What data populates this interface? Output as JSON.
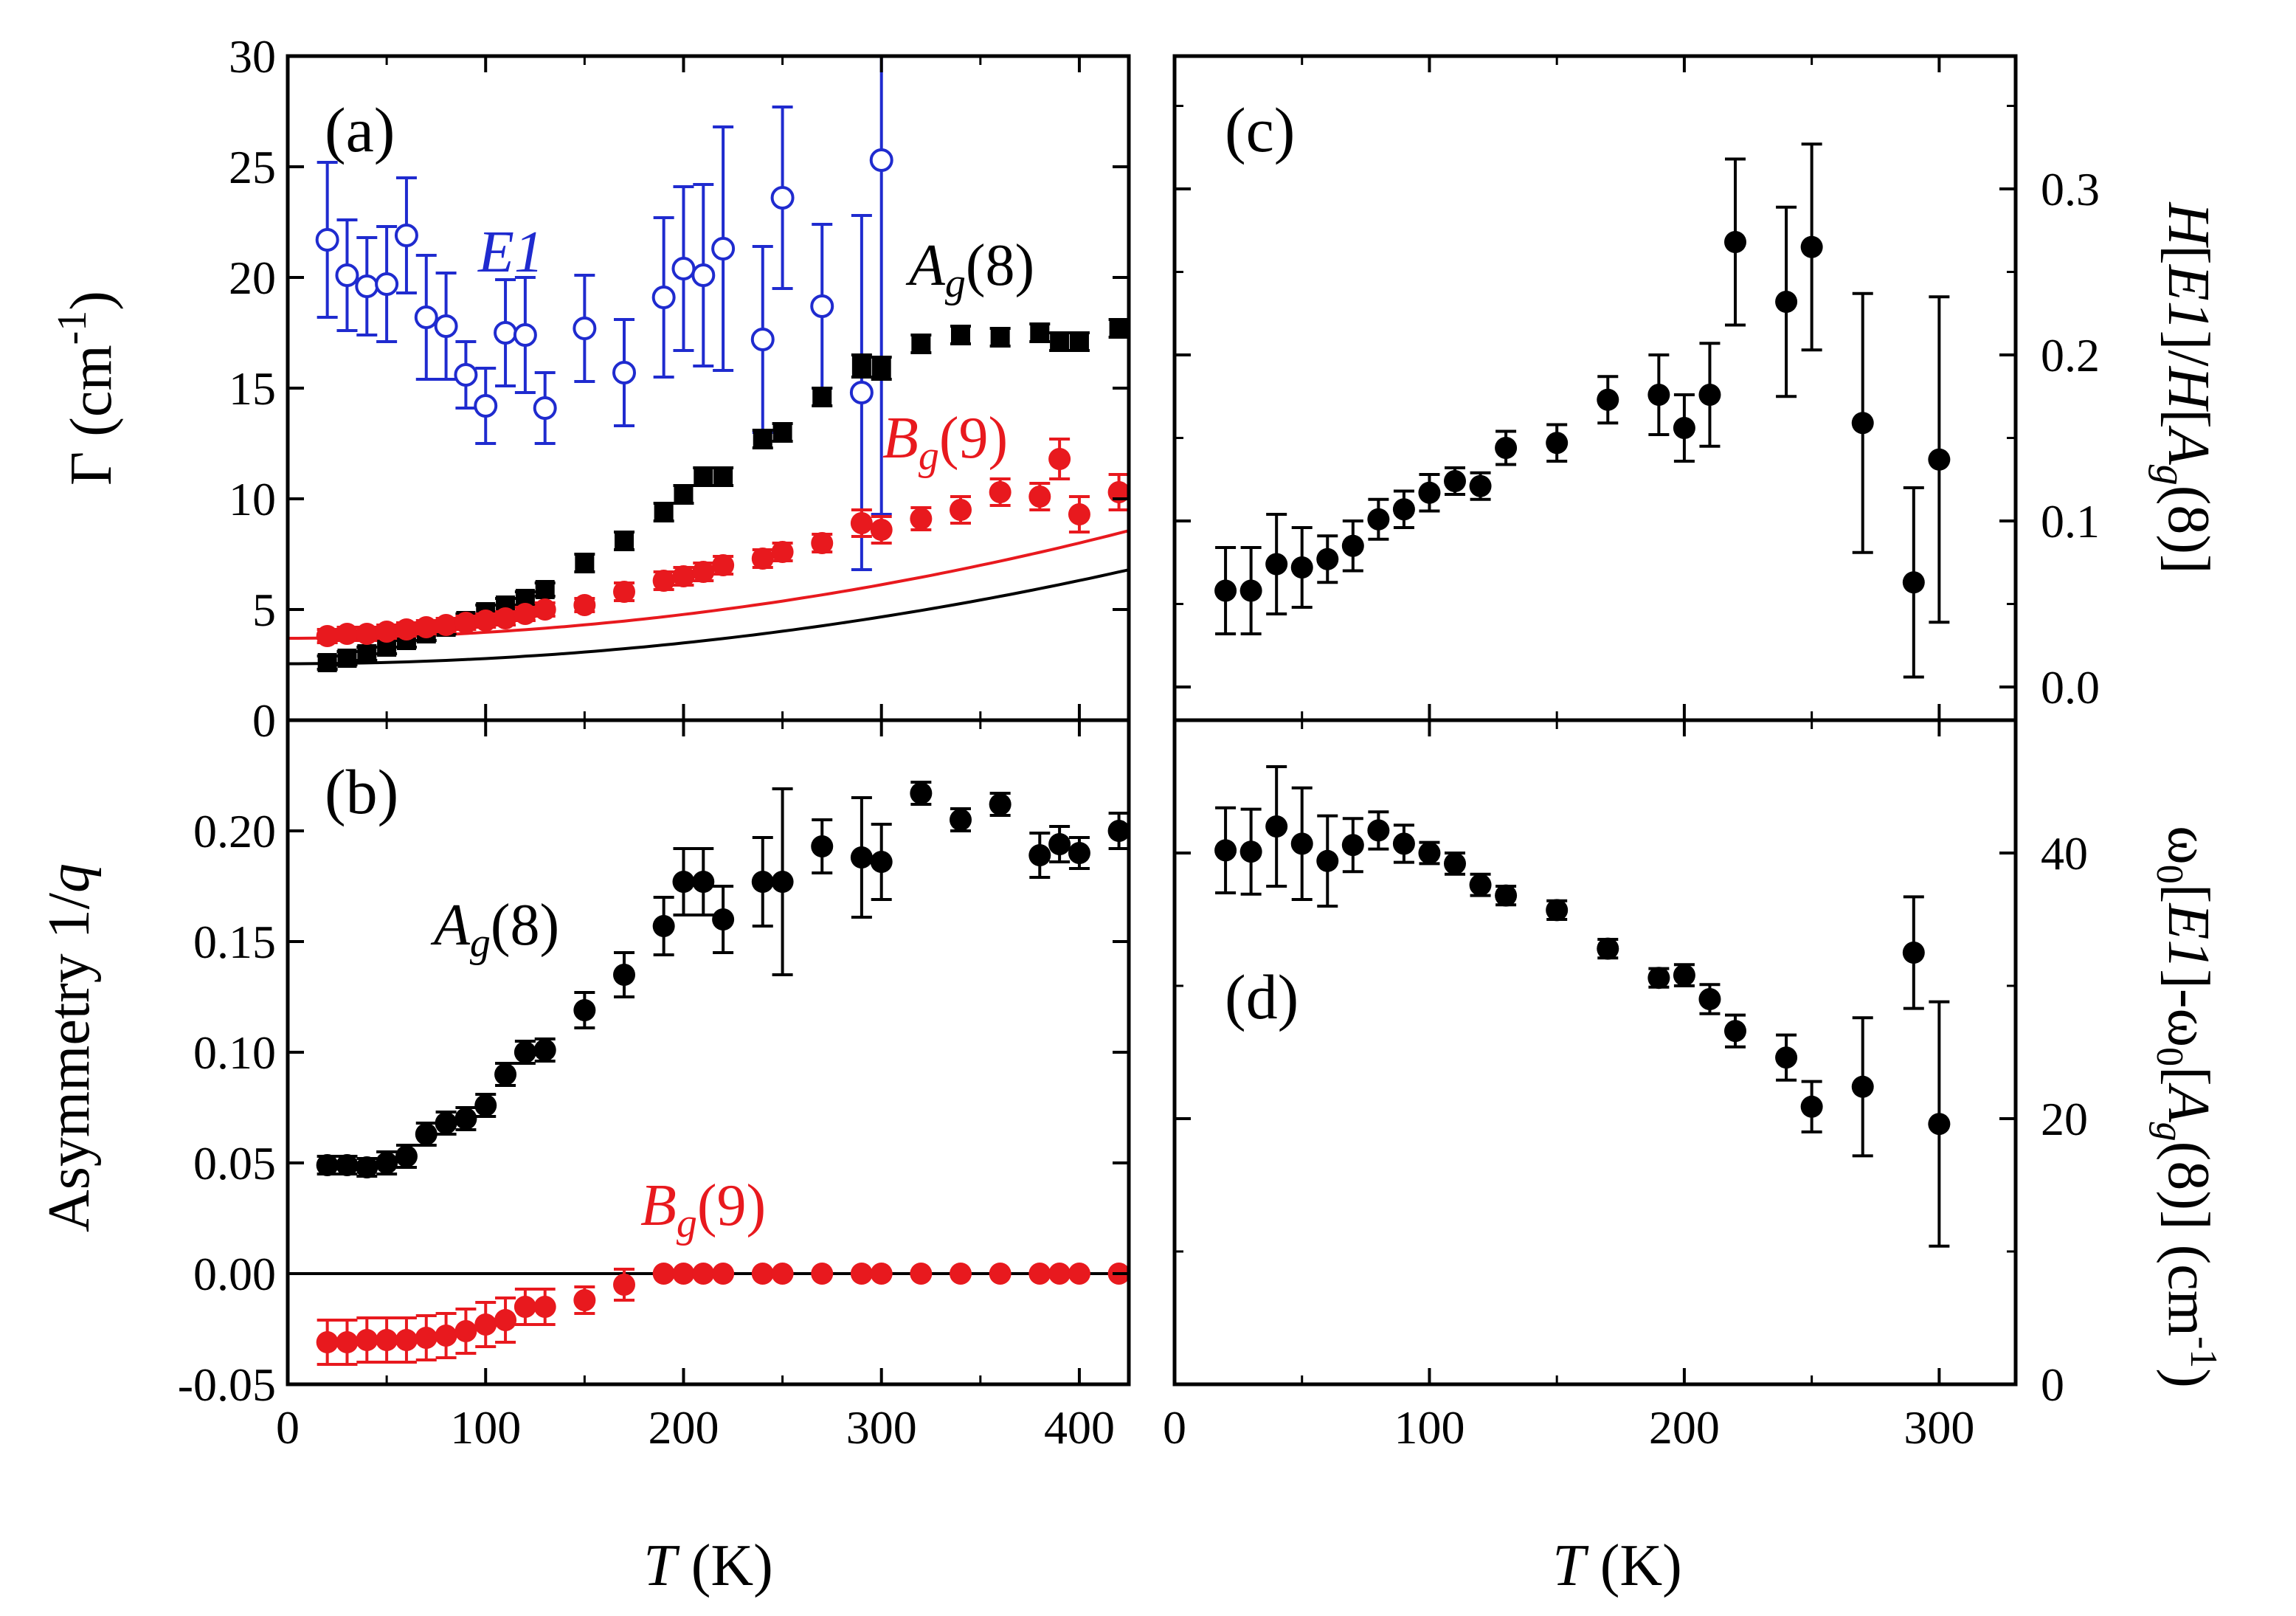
{
  "chart_data": [
    {
      "id": "a",
      "type": "scatter",
      "panel_label": "(a)",
      "ylabel": "Γ (cm",
      "ylabel_sup": "-1",
      "ylabel_close": ")",
      "xlabel": "",
      "xlim": [
        0,
        425
      ],
      "ylim": [
        0,
        30
      ],
      "xticks": [
        0,
        100,
        200,
        300,
        400
      ],
      "yticks": [
        0,
        5,
        10,
        15,
        20,
        25,
        30
      ],
      "series": [
        {
          "name": "E1",
          "color": "#1f2bcf",
          "marker": "open-circle",
          "x": [
            20,
            30,
            40,
            50,
            60,
            70,
            80,
            90,
            100,
            110,
            120,
            130,
            150,
            170,
            190,
            200,
            210,
            220,
            240,
            250,
            270,
            290,
            300
          ],
          "y": [
            21.7,
            20.1,
            19.6,
            19.7,
            21.9,
            18.2,
            17.8,
            15.6,
            14.2,
            17.5,
            17.4,
            14.1,
            17.7,
            15.7,
            19.1,
            20.4,
            20.1,
            21.3,
            17.2,
            23.6,
            18.7,
            14.8,
            25.3
          ],
          "yerr": [
            3.5,
            2.5,
            2.2,
            2.6,
            2.6,
            2.8,
            2.4,
            1.5,
            1.7,
            2.4,
            2.6,
            1.6,
            2.4,
            2.4,
            3.6,
            3.7,
            4.1,
            5.5,
            4.2,
            4.1,
            3.7,
            8.0,
            16.0
          ],
          "label": "E1"
        },
        {
          "name": "Ag(8)",
          "color": "#000000",
          "marker": "filled-square",
          "x": [
            20,
            30,
            40,
            50,
            60,
            70,
            80,
            90,
            100,
            110,
            120,
            130,
            150,
            170,
            190,
            200,
            210,
            220,
            240,
            250,
            270,
            290,
            300,
            320,
            340,
            360,
            380,
            390,
            400,
            420
          ],
          "y": [
            2.6,
            2.8,
            3.0,
            3.3,
            3.6,
            3.9,
            4.2,
            4.5,
            4.9,
            5.2,
            5.5,
            5.9,
            7.1,
            8.1,
            9.4,
            10.2,
            11.0,
            11.0,
            12.7,
            13.0,
            14.6,
            16.0,
            15.9,
            17.0,
            17.4,
            17.3,
            17.5,
            17.1,
            17.1,
            17.7
          ],
          "yerr": [
            0.3,
            0.3,
            0.3,
            0.3,
            0.3,
            0.3,
            0.3,
            0.3,
            0.3,
            0.3,
            0.3,
            0.3,
            0.4,
            0.4,
            0.4,
            0.4,
            0.4,
            0.4,
            0.4,
            0.4,
            0.4,
            0.5,
            0.5,
            0.4,
            0.4,
            0.4,
            0.4,
            0.4,
            0.4,
            0.4
          ],
          "label_main": "A",
          "label_sub": "g",
          "label_tail": "(8)"
        },
        {
          "name": "Bg(9)",
          "color": "#e8191e",
          "marker": "filled-circle",
          "x": [
            20,
            30,
            40,
            50,
            60,
            70,
            80,
            90,
            100,
            110,
            120,
            130,
            150,
            170,
            190,
            200,
            210,
            220,
            240,
            250,
            270,
            290,
            300,
            320,
            340,
            360,
            380,
            390,
            400,
            420
          ],
          "y": [
            3.8,
            3.9,
            3.9,
            4.0,
            4.1,
            4.2,
            4.3,
            4.4,
            4.5,
            4.6,
            4.8,
            5.0,
            5.2,
            5.8,
            6.3,
            6.5,
            6.7,
            7.0,
            7.3,
            7.6,
            8.0,
            8.9,
            8.6,
            9.1,
            9.5,
            10.3,
            10.1,
            11.8,
            9.3,
            10.3
          ],
          "yerr": [
            0.3,
            0.3,
            0.3,
            0.3,
            0.3,
            0.3,
            0.3,
            0.3,
            0.3,
            0.3,
            0.3,
            0.3,
            0.3,
            0.4,
            0.4,
            0.4,
            0.4,
            0.4,
            0.4,
            0.4,
            0.4,
            0.6,
            0.6,
            0.5,
            0.6,
            0.6,
            0.6,
            0.9,
            0.8,
            0.8
          ],
          "label_main": "B",
          "label_sub": "g",
          "label_tail": "(9)"
        }
      ],
      "fit_lines": [
        {
          "name": "Bg(9) fit",
          "color": "#e8191e",
          "y0": 3.7,
          "coef": 2.69e-05,
          "power": 2
        },
        {
          "name": "Ag(8) fit",
          "color": "#000000",
          "y0": 2.55,
          "coef": 2.35e-05,
          "power": 2
        }
      ]
    },
    {
      "id": "b",
      "type": "scatter",
      "panel_label": "(b)",
      "ylabel_prefix": "Asymmetry 1/",
      "ylabel_italic": "q",
      "xlabel_italic": "T",
      "xlabel_rest": " (K)",
      "xlim": [
        0,
        425
      ],
      "ylim": [
        -0.05,
        0.25
      ],
      "xticks": [
        0,
        100,
        200,
        300,
        400
      ],
      "yticks": [
        -0.05,
        0.0,
        0.05,
        0.1,
        0.15,
        0.2
      ],
      "ytick_labels": [
        "-0.05",
        "0.00",
        "0.05",
        "0.10",
        "0.15",
        "0.20"
      ],
      "xtick_labels": [
        "0",
        "100",
        "200",
        "300",
        "400"
      ],
      "zero_line": 0,
      "series": [
        {
          "name": "Ag(8)",
          "color": "#000000",
          "marker": "filled-circle",
          "x": [
            20,
            30,
            40,
            50,
            60,
            70,
            80,
            90,
            100,
            110,
            120,
            130,
            150,
            170,
            190,
            200,
            210,
            220,
            240,
            250,
            270,
            290,
            300,
            320,
            340,
            360,
            380,
            390,
            400,
            420
          ],
          "y": [
            0.049,
            0.049,
            0.048,
            0.05,
            0.053,
            0.063,
            0.068,
            0.07,
            0.076,
            0.09,
            0.1,
            0.101,
            0.119,
            0.135,
            0.157,
            0.177,
            0.177,
            0.16,
            0.177,
            0.177,
            0.193,
            0.188,
            0.186,
            0.217,
            0.205,
            0.212,
            0.189,
            0.194,
            0.19,
            0.2
          ],
          "yerr": [
            0.004,
            0.004,
            0.004,
            0.005,
            0.005,
            0.005,
            0.005,
            0.005,
            0.005,
            0.005,
            0.005,
            0.005,
            0.008,
            0.01,
            0.013,
            0.015,
            0.015,
            0.015,
            0.02,
            0.042,
            0.012,
            0.027,
            0.017,
            0.005,
            0.005,
            0.005,
            0.01,
            0.008,
            0.007,
            0.008
          ],
          "label_main": "A",
          "label_sub": "g",
          "label_tail": "(8)"
        },
        {
          "name": "Bg(9)",
          "color": "#e8191e",
          "marker": "filled-circle",
          "x": [
            20,
            30,
            40,
            50,
            60,
            70,
            80,
            90,
            100,
            110,
            120,
            130,
            150,
            170,
            190,
            200,
            210,
            220,
            240,
            250,
            270,
            290,
            300,
            320,
            340,
            360,
            380,
            390,
            400,
            420
          ],
          "y": [
            -0.031,
            -0.031,
            -0.03,
            -0.03,
            -0.03,
            -0.029,
            -0.028,
            -0.026,
            -0.023,
            -0.021,
            -0.015,
            -0.015,
            -0.012,
            -0.005,
            0,
            0,
            0,
            0,
            0,
            0,
            0,
            0,
            0,
            0,
            0,
            0,
            0,
            0,
            0,
            0
          ],
          "yerr": [
            0.01,
            0.01,
            0.01,
            0.01,
            0.01,
            0.01,
            0.01,
            0.01,
            0.01,
            0.01,
            0.008,
            0.008,
            0.006,
            0.007,
            0,
            0,
            0,
            0,
            0,
            0,
            0,
            0,
            0,
            0,
            0,
            0,
            0,
            0,
            0,
            0
          ],
          "label_main": "B",
          "label_sub": "g",
          "label_tail": "(9)"
        }
      ]
    },
    {
      "id": "c",
      "type": "scatter",
      "panel_label": "(c)",
      "ylabel_parts": [
        "H",
        "[",
        "E1",
        "]/",
        "H",
        "[",
        "A",
        "g",
        "(8)]"
      ],
      "xlim": [
        0,
        330
      ],
      "ylim": [
        -0.02,
        0.38
      ],
      "xticks": [
        0,
        100,
        200,
        300
      ],
      "yticks": [
        0.0,
        0.1,
        0.2,
        0.3
      ],
      "ytick_labels": [
        "0.0",
        "0.1",
        "0.2",
        "0.3"
      ],
      "minor_yticks": [
        0.05,
        0.15,
        0.25,
        0.35
      ],
      "series": [
        {
          "name": "H[E1]/H[Ag(8)]",
          "color": "#000000",
          "marker": "filled-circle",
          "x": [
            20,
            30,
            40,
            50,
            60,
            70,
            80,
            90,
            100,
            110,
            120,
            130,
            150,
            170,
            190,
            200,
            210,
            220,
            240,
            250,
            270,
            290,
            300
          ],
          "y": [
            0.058,
            0.058,
            0.074,
            0.072,
            0.077,
            0.085,
            0.101,
            0.107,
            0.117,
            0.124,
            0.121,
            0.144,
            0.147,
            0.173,
            0.176,
            0.156,
            0.176,
            0.268,
            0.232,
            0.265,
            0.159,
            0.063,
            0.137
          ],
          "yerr": [
            0.026,
            0.026,
            0.03,
            0.024,
            0.014,
            0.015,
            0.012,
            0.011,
            0.011,
            0.008,
            0.008,
            0.01,
            0.011,
            0.014,
            0.024,
            0.02,
            0.031,
            0.05,
            0.057,
            0.062,
            0.078,
            0.057,
            0.098
          ]
        }
      ]
    },
    {
      "id": "d",
      "type": "scatter",
      "panel_label": "(d)",
      "xlabel_italic": "T",
      "xlabel_rest": " (K)",
      "ylabel_parts": [
        "ω",
        "0",
        "[",
        "E1",
        "]-ω",
        "0",
        "[",
        "A",
        "g",
        "(8)] (cm",
        "-1",
        ")"
      ],
      "xlim": [
        0,
        330
      ],
      "ylim": [
        0,
        50
      ],
      "xticks": [
        0,
        100,
        200,
        300
      ],
      "xtick_labels": [
        "0",
        "100",
        "200",
        "300"
      ],
      "yticks": [
        0,
        20,
        40
      ],
      "ytick_labels": [
        "0",
        "20",
        "40"
      ],
      "minor_yticks": [
        10,
        30
      ],
      "series": [
        {
          "name": "ω0[E1]-ω0[Ag(8)]",
          "color": "#000000",
          "marker": "filled-circle",
          "x": [
            20,
            30,
            40,
            50,
            60,
            70,
            80,
            90,
            100,
            110,
            120,
            130,
            150,
            170,
            190,
            200,
            210,
            220,
            240,
            250,
            270,
            290,
            300
          ],
          "y": [
            40.2,
            40.1,
            42.0,
            40.7,
            39.4,
            40.6,
            41.7,
            40.7,
            40.0,
            39.2,
            37.6,
            36.8,
            35.7,
            32.8,
            30.6,
            30.8,
            29.0,
            26.6,
            24.6,
            20.9,
            22.4,
            32.5,
            19.6
          ],
          "yerr": [
            3.2,
            3.2,
            4.5,
            4.2,
            3.4,
            2.0,
            1.4,
            1.4,
            0.8,
            0.8,
            0.8,
            0.7,
            0.7,
            0.7,
            0.7,
            0.8,
            1.1,
            1.2,
            1.7,
            1.9,
            5.2,
            4.2,
            9.2
          ]
        }
      ]
    }
  ]
}
